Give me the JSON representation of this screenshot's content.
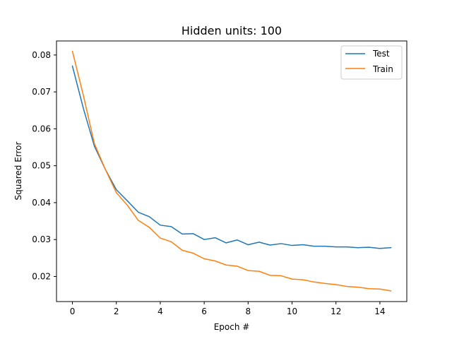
{
  "chart_data": {
    "type": "line",
    "title": "Hidden units: 100",
    "xlabel": "Epoch #",
    "ylabel": "Squared Error",
    "xlim": [
      -0.725,
      15.225
    ],
    "ylim": [
      0.0132,
      0.0838
    ],
    "xticks": [
      0,
      2,
      4,
      6,
      8,
      10,
      12,
      14
    ],
    "yticks": [
      0.02,
      0.03,
      0.04,
      0.05,
      0.06,
      0.07,
      0.08
    ],
    "xtick_labels": [
      "0",
      "2",
      "4",
      "6",
      "8",
      "10",
      "12",
      "14"
    ],
    "ytick_labels": [
      "0.02",
      "0.03",
      "0.04",
      "0.05",
      "0.06",
      "0.07",
      "0.08"
    ],
    "grid": false,
    "legend_position": "top-right",
    "x": [
      0,
      0.5,
      1,
      1.5,
      2,
      2.5,
      3,
      3.5,
      4,
      4.5,
      5,
      5.5,
      6,
      6.5,
      7,
      7.5,
      8,
      8.5,
      9,
      9.5,
      10,
      10.5,
      11,
      11.5,
      12,
      12.5,
      13,
      13.5,
      14,
      14.5
    ],
    "series": [
      {
        "name": "Test",
        "color": "#1f77b4",
        "values": [
          0.077,
          0.0655,
          0.0553,
          0.049,
          0.0435,
          0.0405,
          0.0374,
          0.0362,
          0.0339,
          0.0335,
          0.0315,
          0.0316,
          0.03,
          0.0305,
          0.0291,
          0.0299,
          0.0286,
          0.0293,
          0.0285,
          0.0289,
          0.0284,
          0.0286,
          0.0282,
          0.0282,
          0.028,
          0.028,
          0.0278,
          0.0279,
          0.0276,
          0.0278
        ]
      },
      {
        "name": "Train",
        "color": "#ff7f0e",
        "values": [
          0.081,
          0.069,
          0.056,
          0.049,
          0.0427,
          0.0393,
          0.0352,
          0.0333,
          0.0304,
          0.0294,
          0.0271,
          0.0263,
          0.0248,
          0.0242,
          0.0231,
          0.0228,
          0.0216,
          0.0214,
          0.0203,
          0.0202,
          0.0193,
          0.0191,
          0.0185,
          0.0181,
          0.0178,
          0.0173,
          0.0171,
          0.0167,
          0.0166,
          0.0161
        ]
      }
    ]
  }
}
